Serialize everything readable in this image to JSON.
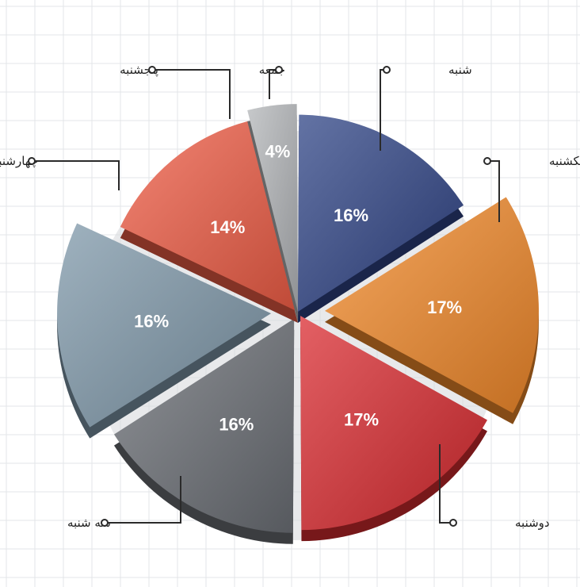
{
  "chart_data": {
    "type": "pie",
    "title": "",
    "exploded": true,
    "legend": "callout-labels",
    "grid": true,
    "categories": [
      "شنبه",
      "یکشنبه",
      "دوشنبه",
      "سه شنبه",
      "چهارشنبه",
      "پنجشنبه",
      "جمعه"
    ],
    "values": [
      16,
      17,
      17,
      16,
      16,
      14,
      4
    ],
    "value_labels": [
      "16%",
      "17%",
      "17%",
      "16%",
      "16%",
      "14%",
      "4%"
    ],
    "colors": [
      "#2f4486",
      "#f28a2a",
      "#d92b30",
      "#6b6f75",
      "#7f98aa",
      "#ef5c45",
      "#b4b7ba"
    ]
  }
}
